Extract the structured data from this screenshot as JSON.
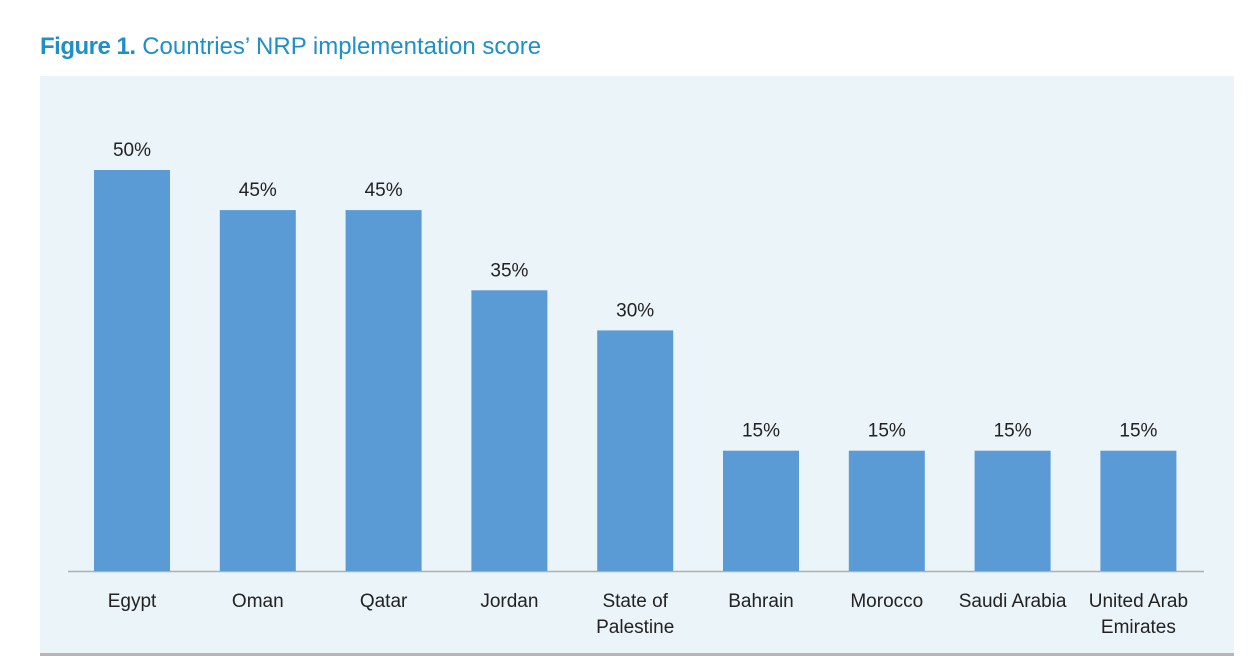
{
  "figure": {
    "label": "Figure 1.",
    "caption": "Countries’ NRP implementation score"
  },
  "colors": {
    "title": "#1f8fc9",
    "panel_background": "#ebf4f9",
    "bar": "#5b9bd5",
    "axis": "#b0b0b0",
    "bottom_rule": "#b6b6b6"
  },
  "chart_data": {
    "type": "bar",
    "title": "Countries’ NRP implementation score",
    "categories": [
      "Egypt",
      "Oman",
      "Qatar",
      "Jordan",
      "State of Palestine",
      "Bahrain",
      "Morocco",
      "Saudi Arabia",
      "United Arab Emirates"
    ],
    "category_lines": [
      [
        "Egypt"
      ],
      [
        "Oman"
      ],
      [
        "Qatar"
      ],
      [
        "Jordan"
      ],
      [
        "State of",
        "Palestine"
      ],
      [
        "Bahrain"
      ],
      [
        "Morocco"
      ],
      [
        "Saudi Arabia"
      ],
      [
        "United Arab",
        "Emirates"
      ]
    ],
    "values": [
      50,
      45,
      45,
      35,
      30,
      15,
      15,
      15,
      15
    ],
    "value_labels": [
      "50%",
      "45%",
      "45%",
      "35%",
      "30%",
      "15%",
      "15%",
      "15%",
      "15%"
    ],
    "unit": "%",
    "ylim": [
      0,
      50
    ],
    "grid": false,
    "legend": "none",
    "data_labels": "above bars"
  }
}
